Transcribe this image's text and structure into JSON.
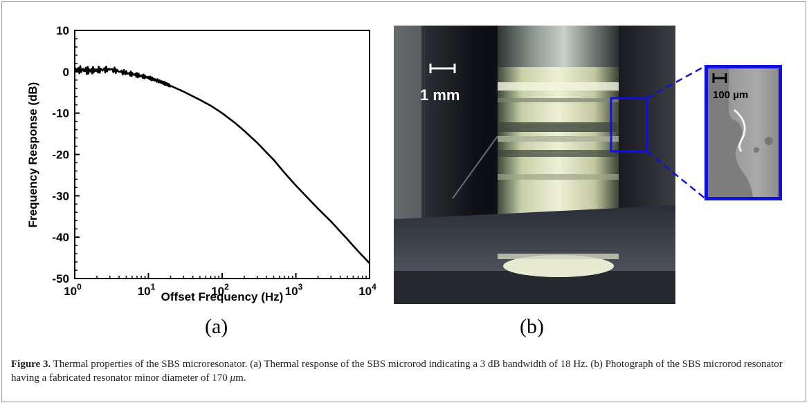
{
  "chart_data": {
    "type": "line",
    "xlabel": "Offset Frequency (Hz)",
    "ylabel": "Frequency Response (dB)",
    "x_scale": "log",
    "xlim": [
      1,
      10000
    ],
    "ylim": [
      -50,
      10
    ],
    "x_ticks": [
      {
        "value": 1,
        "base": "10",
        "exp": "0"
      },
      {
        "value": 10,
        "base": "10",
        "exp": "1"
      },
      {
        "value": 100,
        "base": "10",
        "exp": "2"
      },
      {
        "value": 1000,
        "base": "10",
        "exp": "3"
      },
      {
        "value": 10000,
        "base": "10",
        "exp": "4"
      }
    ],
    "y_ticks": [
      "10",
      "0",
      "-10",
      "-20",
      "-30",
      "-40",
      "-50"
    ],
    "series": [
      {
        "color": "#000000",
        "x": [
          1,
          1.5,
          2,
          3,
          5,
          7,
          10,
          15,
          20,
          30,
          50,
          70,
          100,
          150,
          200,
          300,
          500,
          700,
          1000,
          1500,
          2000,
          3000,
          5000,
          7000,
          10000
        ],
        "y": [
          0.6,
          0.3,
          0.4,
          0.6,
          -0.3,
          -0.8,
          -1.4,
          -2.5,
          -3.4,
          -4.8,
          -6.8,
          -8.2,
          -10.0,
          -12.4,
          -14.3,
          -17.2,
          -21.3,
          -24.4,
          -27.5,
          -30.8,
          -33.1,
          -36.2,
          -40.5,
          -43.4,
          -46.3
        ]
      }
    ]
  },
  "photo": {
    "scale_main": "1 mm",
    "scale_inset": "100 µm",
    "inset_border_color": "#1010e0"
  },
  "panel_labels": {
    "a": "(a)",
    "b": "(b)"
  },
  "caption": {
    "figure_label": "Figure 3.",
    "text_part1": " Thermal properties of the SBS microresonator. (a) Thermal response of the SBS microrod indicating a 3 dB bandwidth of 18 Hz. (b) Photograph of the SBS microrod resonator having a fabricated resonator minor diameter of 170 ",
    "mu": "μ",
    "text_part2": "m."
  }
}
